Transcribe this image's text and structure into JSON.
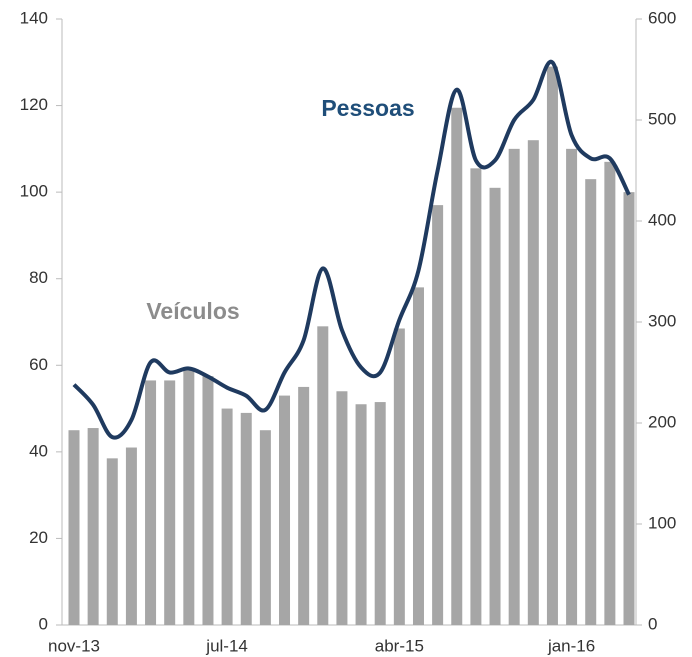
{
  "chart_data": {
    "type": "bar_line",
    "categories": [
      "nov-13",
      null,
      null,
      null,
      null,
      null,
      null,
      null,
      "jul-14",
      null,
      null,
      null,
      null,
      null,
      null,
      null,
      null,
      "abr-15",
      null,
      null,
      null,
      null,
      null,
      null,
      null,
      null,
      "jan-16",
      null,
      null,
      null
    ],
    "series": [
      {
        "name": "Veículos",
        "type": "bar",
        "color": "#a6a6a6",
        "axis": "y",
        "values": [
          45,
          45.5,
          38.5,
          41,
          56.5,
          56.5,
          59,
          57.5,
          50,
          49,
          45,
          53,
          55,
          69,
          54,
          51,
          51.5,
          68.5,
          78,
          97,
          119.5,
          105.5,
          101,
          110,
          112,
          129,
          110,
          103,
          107,
          100
        ]
      },
      {
        "name": "Pessoas",
        "type": "line",
        "color": "#1f3a5f",
        "axis": "y2",
        "values": [
          238,
          218,
          186,
          203,
          260,
          250,
          254,
          246,
          235,
          227,
          213,
          250,
          282,
          353,
          292,
          255,
          250,
          302,
          351,
          450,
          530,
          460,
          460,
          500,
          520,
          557,
          485,
          462,
          462,
          426
        ]
      }
    ],
    "ylim": [
      0,
      140
    ],
    "yticks": [
      0,
      20,
      40,
      60,
      80,
      100,
      120,
      140
    ],
    "y2lim": [
      0,
      600
    ],
    "y2ticks": [
      0,
      100,
      200,
      300,
      400,
      500,
      600
    ]
  }
}
